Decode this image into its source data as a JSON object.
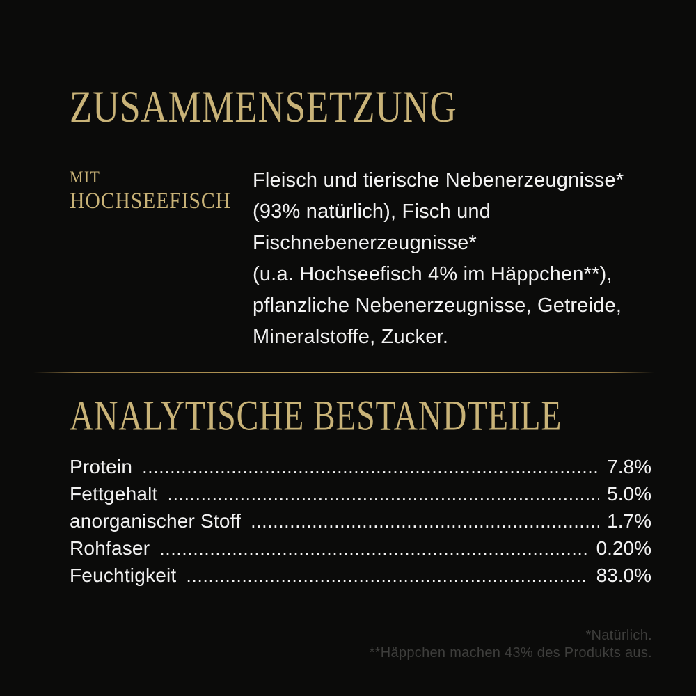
{
  "colors": {
    "bg": "#0b0b0a",
    "gold": "#c9b378",
    "white": "#f2f2f2",
    "footnote": "#3e3e3c"
  },
  "composition": {
    "title": "ZUSAMMENSETZUNG",
    "variant_prefix": "MIT",
    "variant_name": "HOCHSEEFISCH",
    "ingredients": "Fleisch und tierische Nebenerzeugnisse*\n(93% natürlich), Fisch und\nFischnebenerzeugnisse*\n(u.a. Hochseefisch 4% im Häppchen**),\npflanzliche Nebenerzeugnisse, Getreide,\nMineralstoffe, Zucker."
  },
  "analysis": {
    "title": "ANALYTISCHE BESTANDTEILE",
    "rows": [
      {
        "label": "Protein",
        "value": "7.8%"
      },
      {
        "label": "Fettgehalt",
        "value": "5.0%"
      },
      {
        "label": "anorganischer Stoff",
        "value": "1.7%"
      },
      {
        "label": "Rohfaser",
        "value": "0.20%"
      },
      {
        "label": "Feuchtigkeit",
        "value": "83.0%"
      }
    ]
  },
  "footnotes": {
    "natural": "*Natürlich.",
    "haeppchen": "**Häppchen machen 43% des Produkts aus."
  }
}
